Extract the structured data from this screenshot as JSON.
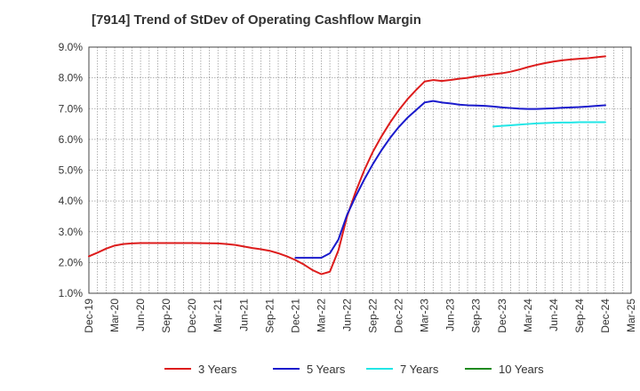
{
  "chart_data": {
    "type": "line",
    "title": "[7914]  Trend of StDev of Operating Cashflow Margin",
    "xlabel": "",
    "ylabel": "",
    "ylim": [
      1.0,
      9.0
    ],
    "y_ticks": [
      "1.0%",
      "2.0%",
      "3.0%",
      "4.0%",
      "5.0%",
      "6.0%",
      "7.0%",
      "8.0%",
      "9.0%"
    ],
    "x_ticks": [
      "Dec-19",
      "Mar-20",
      "Jun-20",
      "Sep-20",
      "Dec-20",
      "Mar-21",
      "Jun-21",
      "Sep-21",
      "Dec-21",
      "Mar-22",
      "Jun-22",
      "Sep-22",
      "Dec-22",
      "Mar-23",
      "Jun-23",
      "Sep-23",
      "Dec-23",
      "Mar-24",
      "Jun-24",
      "Sep-24",
      "Dec-24",
      "Mar-25"
    ],
    "grid": true,
    "legend_position": "bottom",
    "series": [
      {
        "name": "3 Years",
        "color": "#dd1c1c",
        "points": [
          [
            "Dec-19",
            2.2
          ],
          [
            "Jan-20",
            2.32
          ],
          [
            "Feb-20",
            2.45
          ],
          [
            "Mar-20",
            2.55
          ],
          [
            "Apr-20",
            2.6
          ],
          [
            "May-20",
            2.62
          ],
          [
            "Jun-20",
            2.63
          ],
          [
            "Sep-20",
            2.63
          ],
          [
            "Dec-20",
            2.63
          ],
          [
            "Mar-21",
            2.62
          ],
          [
            "Apr-21",
            2.6
          ],
          [
            "May-21",
            2.57
          ],
          [
            "Jun-21",
            2.52
          ],
          [
            "Jul-21",
            2.47
          ],
          [
            "Aug-21",
            2.43
          ],
          [
            "Sep-21",
            2.38
          ],
          [
            "Oct-21",
            2.3
          ],
          [
            "Nov-21",
            2.2
          ],
          [
            "Dec-21",
            2.08
          ],
          [
            "Jan-22",
            1.93
          ],
          [
            "Feb-22",
            1.75
          ],
          [
            "Mar-22",
            1.62
          ],
          [
            "Apr-22",
            1.7
          ],
          [
            "May-22",
            2.4
          ],
          [
            "Jun-22",
            3.5
          ],
          [
            "Jul-22",
            4.3
          ],
          [
            "Aug-22",
            5.0
          ],
          [
            "Sep-22",
            5.6
          ],
          [
            "Oct-22",
            6.1
          ],
          [
            "Nov-22",
            6.55
          ],
          [
            "Dec-22",
            6.95
          ],
          [
            "Jan-23",
            7.3
          ],
          [
            "Feb-23",
            7.6
          ],
          [
            "Mar-23",
            7.88
          ],
          [
            "Apr-23",
            7.93
          ],
          [
            "May-23",
            7.9
          ],
          [
            "Jun-23",
            7.93
          ],
          [
            "Jul-23",
            7.97
          ],
          [
            "Aug-23",
            8.0
          ],
          [
            "Sep-23",
            8.05
          ],
          [
            "Oct-23",
            8.08
          ],
          [
            "Nov-23",
            8.12
          ],
          [
            "Dec-23",
            8.15
          ],
          [
            "Jan-24",
            8.2
          ],
          [
            "Feb-24",
            8.27
          ],
          [
            "Mar-24",
            8.35
          ],
          [
            "Apr-24",
            8.42
          ],
          [
            "May-24",
            8.48
          ],
          [
            "Jun-24",
            8.53
          ],
          [
            "Jul-24",
            8.57
          ],
          [
            "Aug-24",
            8.6
          ],
          [
            "Sep-24",
            8.62
          ],
          [
            "Oct-24",
            8.64
          ],
          [
            "Nov-24",
            8.67
          ],
          [
            "Dec-24",
            8.7
          ]
        ]
      },
      {
        "name": "5 Years",
        "color": "#1a1acc",
        "points": [
          [
            "Dec-21",
            2.15
          ],
          [
            "Jan-22",
            2.15
          ],
          [
            "Feb-22",
            2.15
          ],
          [
            "Mar-22",
            2.15
          ],
          [
            "Apr-22",
            2.3
          ],
          [
            "May-22",
            2.75
          ],
          [
            "Jun-22",
            3.55
          ],
          [
            "Jul-22",
            4.15
          ],
          [
            "Aug-22",
            4.7
          ],
          [
            "Sep-22",
            5.2
          ],
          [
            "Oct-22",
            5.65
          ],
          [
            "Nov-22",
            6.05
          ],
          [
            "Dec-22",
            6.4
          ],
          [
            "Jan-23",
            6.7
          ],
          [
            "Feb-23",
            6.95
          ],
          [
            "Mar-23",
            7.2
          ],
          [
            "Apr-23",
            7.25
          ],
          [
            "May-23",
            7.2
          ],
          [
            "Jun-23",
            7.17
          ],
          [
            "Jul-23",
            7.13
          ],
          [
            "Aug-23",
            7.11
          ],
          [
            "Sep-23",
            7.1
          ],
          [
            "Oct-23",
            7.09
          ],
          [
            "Nov-23",
            7.07
          ],
          [
            "Dec-23",
            7.04
          ],
          [
            "Jan-24",
            7.02
          ],
          [
            "Feb-24",
            7.0
          ],
          [
            "Mar-24",
            6.99
          ],
          [
            "Apr-24",
            6.99
          ],
          [
            "May-24",
            7.0
          ],
          [
            "Jun-24",
            7.01
          ],
          [
            "Jul-24",
            7.03
          ],
          [
            "Aug-24",
            7.04
          ],
          [
            "Sep-24",
            7.05
          ],
          [
            "Oct-24",
            7.07
          ],
          [
            "Nov-24",
            7.09
          ],
          [
            "Dec-24",
            7.11
          ]
        ]
      },
      {
        "name": "7 Years",
        "color": "#22e6e6",
        "points": [
          [
            "Nov-23",
            6.42
          ],
          [
            "Dec-23",
            6.44
          ],
          [
            "Jan-24",
            6.46
          ],
          [
            "Feb-24",
            6.48
          ],
          [
            "Mar-24",
            6.5
          ],
          [
            "Apr-24",
            6.52
          ],
          [
            "May-24",
            6.53
          ],
          [
            "Jun-24",
            6.54
          ],
          [
            "Jul-24",
            6.55
          ],
          [
            "Aug-24",
            6.55
          ],
          [
            "Sep-24",
            6.56
          ],
          [
            "Oct-24",
            6.56
          ],
          [
            "Nov-24",
            6.56
          ],
          [
            "Dec-24",
            6.56
          ]
        ]
      },
      {
        "name": "10 Years",
        "color": "#1e8a1e",
        "points": []
      }
    ]
  }
}
